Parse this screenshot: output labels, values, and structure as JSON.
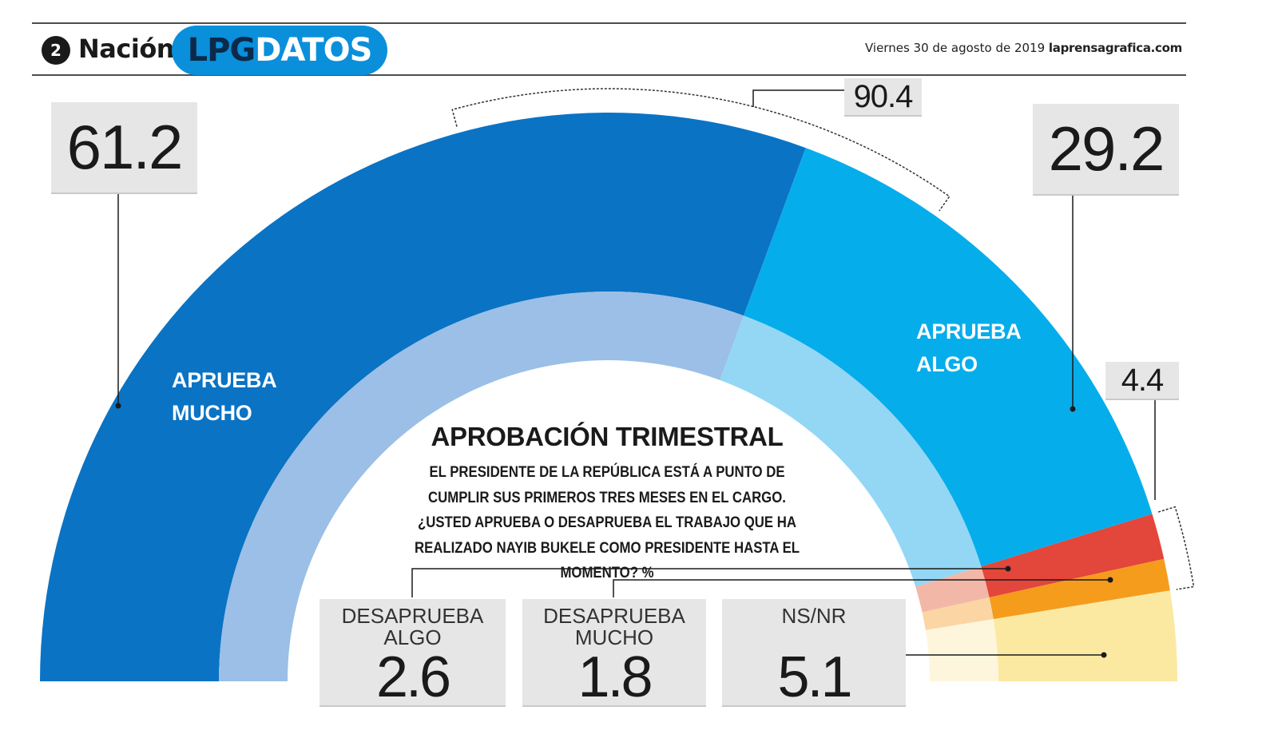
{
  "header": {
    "page_number": "2",
    "section": "Nación",
    "brand_part1": "LPG",
    "brand_part2": "DATOS",
    "date": "Viernes 30 de agosto de 2019",
    "site": "laprensagrafica.com"
  },
  "chart_data": {
    "type": "pie",
    "subtype": "semicircle",
    "title": "APROBACIÓN TRIMESTRAL",
    "subtitle": "EL PRESIDENTE DE LA REPÚBLICA ESTÁ A PUNTO DE CUMPLIR SUS PRIMEROS TRES MESES EN EL CARGO. ¿USTED APRUEBA O DESAPRUEBA EL TRABAJO QUE HA REALIZADO NAYIB BUKELE COMO PRESIDENTE HASTA EL MOMENTO? %",
    "unit": "%",
    "slices": [
      {
        "label_lines": [
          "APRUEBA",
          "MUCHO"
        ],
        "value": 61.2,
        "value_label": "61.2",
        "color": "#0a73c4",
        "inner_color": "#9bbfe6"
      },
      {
        "label_lines": [
          "APRUEBA",
          "ALGO"
        ],
        "value": 29.2,
        "value_label": "29.2",
        "color": "#06adeb",
        "inner_color": "#93d7f5"
      },
      {
        "label_lines": [
          "DESAPRUEBA",
          "ALGO"
        ],
        "value": 2.6,
        "value_label": "2.6",
        "color": "#e3463a",
        "inner_color": "#f3b7a7"
      },
      {
        "label_lines": [
          "DESAPRUEBA",
          "MUCHO"
        ],
        "value": 1.8,
        "value_label": "1.8",
        "color": "#f59c1d",
        "inner_color": "#fbd5a3"
      },
      {
        "label_lines": [
          "NS/NR"
        ],
        "value": 5.1,
        "value_label": "5.1",
        "color": "#fbe9a2",
        "inner_color": "#fdf6dc"
      }
    ],
    "group_totals": [
      {
        "label": "90.4",
        "value": 90.4,
        "covers": [
          "APRUEBA MUCHO",
          "APRUEBA ALGO"
        ],
        "note": "bracket on approve slices"
      },
      {
        "label": "4.4",
        "value": 4.4,
        "covers": [
          "DESAPRUEBA ALGO",
          "DESAPRUEBA MUCHO"
        ],
        "note": "bracket on disapprove slices"
      }
    ],
    "colors": {
      "box_bg": "#e6e6e6",
      "text": "#1a1a1a"
    }
  }
}
